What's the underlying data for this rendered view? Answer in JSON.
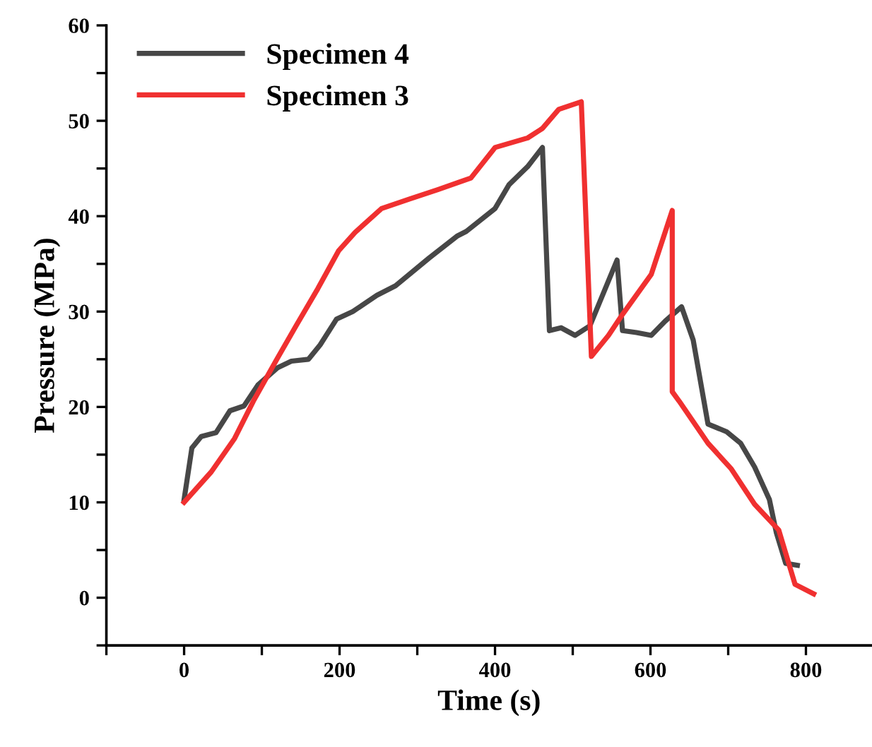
{
  "chart_data": {
    "type": "line",
    "xlabel": "Time (s)",
    "ylabel": "Pressure (MPa)",
    "xlim": [
      -100,
      885
    ],
    "ylim": [
      -5,
      60
    ],
    "xticks": [
      {
        "value": -100,
        "label": null
      },
      0,
      {
        "value": 100,
        "label": null
      },
      200,
      {
        "value": 300,
        "label": null
      },
      400,
      {
        "value": 500,
        "label": null
      },
      600,
      {
        "value": 700,
        "label": null
      },
      800
    ],
    "yticks": [
      {
        "value": -5,
        "label": null
      },
      0,
      {
        "value": 5,
        "label": null
      },
      10,
      {
        "value": 15,
        "label": null
      },
      20,
      {
        "value": 25,
        "label": null
      },
      30,
      {
        "value": 35,
        "label": null
      },
      40,
      {
        "value": 45,
        "label": null
      },
      50,
      {
        "value": 55,
        "label": null
      },
      60
    ],
    "legend": "top left",
    "grid": false,
    "marker": "none",
    "line_style": "solid",
    "series": [
      {
        "name": "Specimen 4",
        "color": "#474747",
        "x": [
          0,
          10,
          22,
          41,
          59,
          77,
          95,
          120,
          138,
          160,
          175,
          196,
          217,
          248,
          272,
          315,
          351,
          363,
          400,
          418,
          442,
          461,
          470,
          485,
          503,
          522,
          557,
          564,
          582,
          601,
          619,
          640,
          655,
          674,
          698,
          716,
          734,
          753,
          762,
          774,
          789
        ],
        "values": [
          10.3,
          15.7,
          16.9,
          17.3,
          19.6,
          20.1,
          22.3,
          24.1,
          24.8,
          25.0,
          26.5,
          29.2,
          30.0,
          31.7,
          32.7,
          35.6,
          37.9,
          38.4,
          40.8,
          43.3,
          45.2,
          47.2,
          28.0,
          28.3,
          27.5,
          28.5,
          35.4,
          28.0,
          27.8,
          27.5,
          29.0,
          30.5,
          27.0,
          18.2,
          17.4,
          16.2,
          13.7,
          10.3,
          6.8,
          3.6,
          3.4
        ]
      },
      {
        "name": "Specimen 3",
        "color": "#f03030",
        "x": [
          0,
          35,
          65,
          89,
          120,
          144,
          172,
          199,
          220,
          254,
          290,
          327,
          369,
          400,
          442,
          461,
          482,
          511,
          524,
          546,
          564,
          601,
          628,
          628,
          637,
          674,
          704,
          734,
          765,
          786,
          810
        ],
        "values": [
          10.0,
          13.2,
          16.7,
          20.6,
          25.1,
          28.5,
          32.4,
          36.4,
          38.3,
          40.8,
          41.8,
          42.8,
          44.0,
          47.2,
          48.2,
          49.2,
          51.2,
          52.0,
          25.3,
          27.5,
          29.7,
          33.9,
          40.6,
          21.6,
          20.6,
          16.2,
          13.5,
          9.8,
          7.1,
          1.4,
          0.4
        ]
      }
    ]
  }
}
